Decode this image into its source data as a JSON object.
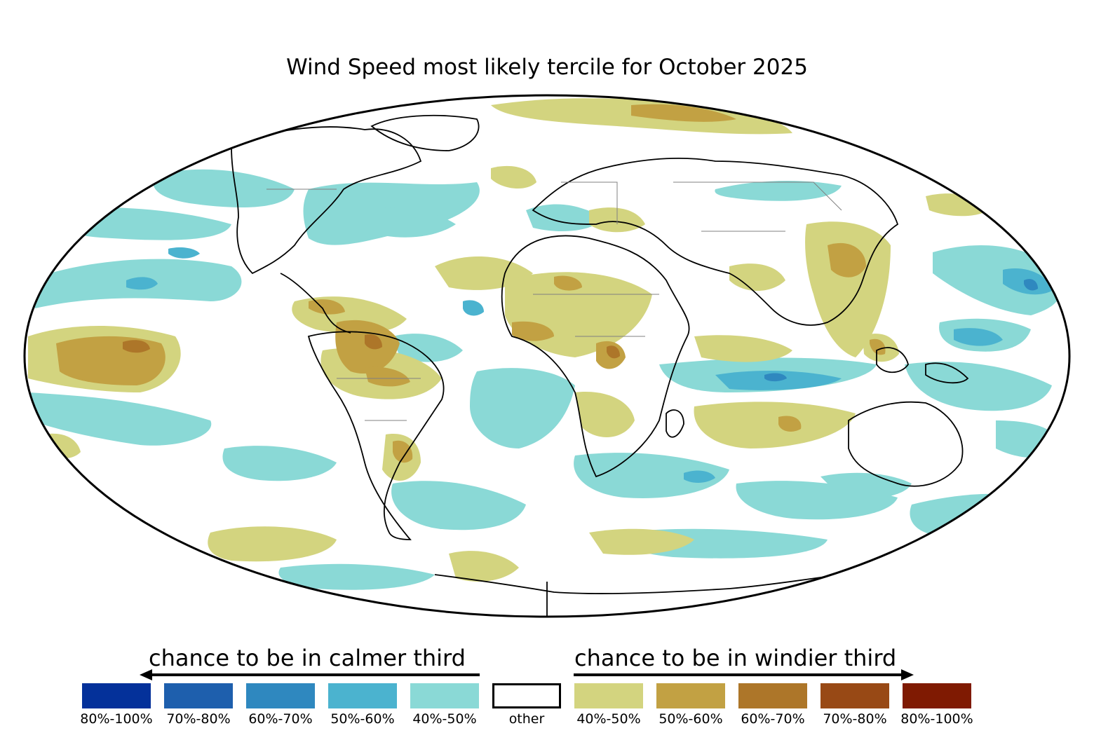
{
  "title": "Wind Speed most likely tercile for October 2025",
  "legend": {
    "calmer_heading": "chance to be in calmer third",
    "windier_heading": "chance to be in windier third",
    "categories": [
      {
        "label": "80%-100%",
        "color": "#04319a",
        "group": "calmer"
      },
      {
        "label": "70%-80%",
        "color": "#1e5fad",
        "group": "calmer"
      },
      {
        "label": "60%-70%",
        "color": "#2f88bf",
        "group": "calmer"
      },
      {
        "label": "50%-60%",
        "color": "#4bb3cf",
        "group": "calmer"
      },
      {
        "label": "40%-50%",
        "color": "#8ad9d6",
        "group": "calmer"
      },
      {
        "label": "other",
        "color": "#ffffff",
        "group": "other"
      },
      {
        "label": "40%-50%",
        "color": "#d3d47f",
        "group": "windier"
      },
      {
        "label": "50%-60%",
        "color": "#c2a143",
        "group": "windier"
      },
      {
        "label": "60%-70%",
        "color": "#ad7629",
        "group": "windier"
      },
      {
        "label": "70%-80%",
        "color": "#984915",
        "group": "windier"
      },
      {
        "label": "80%-100%",
        "color": "#7f1a02",
        "group": "windier"
      }
    ]
  },
  "map": {
    "projection": "Mollweide",
    "coastline_color": "#000000",
    "border_color": "#808080"
  }
}
